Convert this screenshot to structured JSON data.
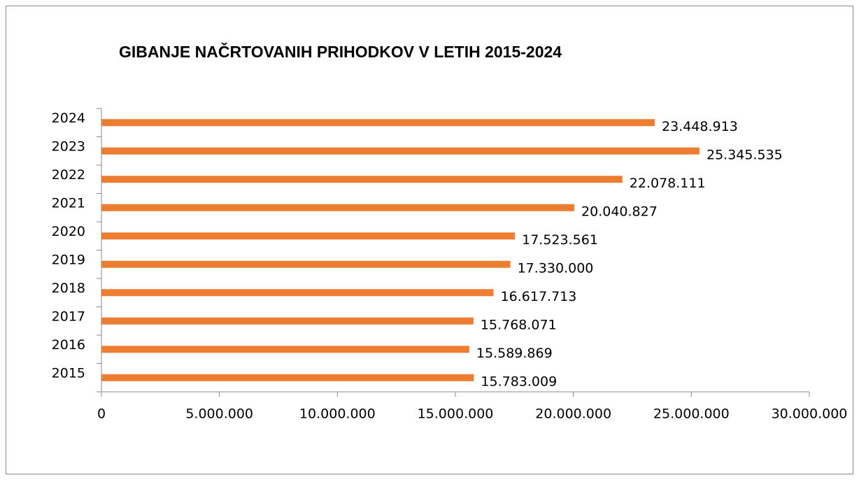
{
  "chart_data": {
    "type": "hbar",
    "title": "GIBANJE NAČRTOVANIH PRIHODKOV V LETIH 2015-2024",
    "categories": [
      "2015",
      "2016",
      "2017",
      "2018",
      "2019",
      "2020",
      "2021",
      "2022",
      "2023",
      "2024"
    ],
    "values": [
      15783009,
      15589869,
      15768071,
      16617713,
      17330000,
      17523561,
      20040827,
      22078111,
      25345535,
      23448913
    ],
    "value_labels": [
      "15.783.009",
      "15.589.869",
      "15.768.071",
      "16.617.713",
      "17.330.000",
      "17.523.561",
      "20.040.827",
      "22.078.111",
      "25.345.535",
      "23.448.913"
    ],
    "color": "#ed7d31",
    "xlim": [
      0,
      30000000
    ],
    "xticks": [
      0,
      {
        "value": 5000000,
        "label": "5.000.000"
      },
      {
        "value": 10000000,
        "label": "10.000.000"
      },
      {
        "value": 15000000,
        "label": "15.000.000"
      },
      {
        "value": 20000000,
        "label": "20.000.000"
      },
      {
        "value": 25000000,
        "label": "25.000.000"
      },
      {
        "value": 30000000,
        "label": "30.000.000"
      }
    ],
    "grid": false
  }
}
